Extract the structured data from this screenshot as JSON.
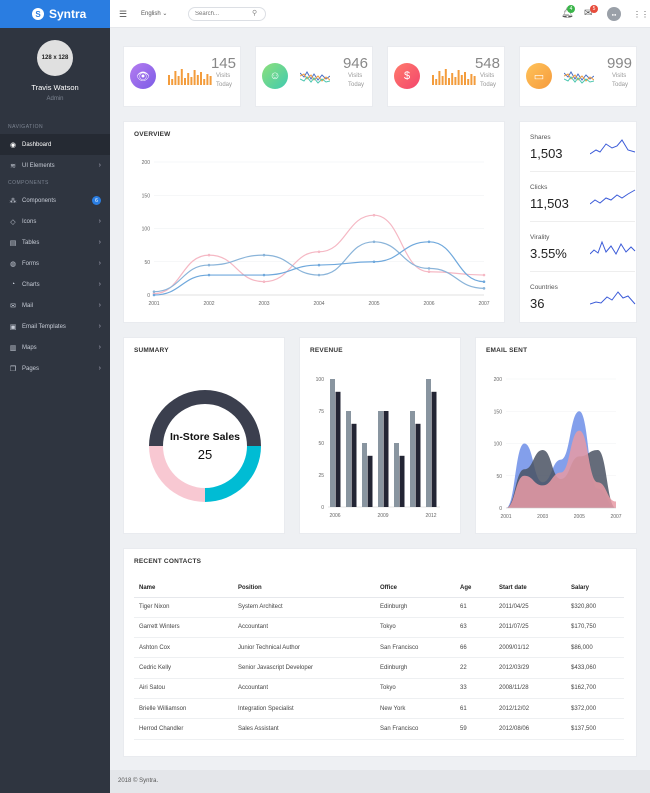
{
  "brand": {
    "name": "Syntra"
  },
  "profile": {
    "avatar_text": "128 x 128",
    "name": "Travis Watson",
    "role": "Admin"
  },
  "nav": {
    "heading1": "NAVIGATION",
    "heading2": "COMPONENTS",
    "items": [
      {
        "label": "Dashboard",
        "icon": "dashboard-icon"
      },
      {
        "label": "UI Elements",
        "icon": "layers-icon"
      },
      {
        "label": "Components",
        "icon": "components-icon",
        "badge": "6"
      },
      {
        "label": "Icons",
        "icon": "diamond-icon"
      },
      {
        "label": "Tables",
        "icon": "table-icon"
      },
      {
        "label": "Forms",
        "icon": "form-icon"
      },
      {
        "label": "Charts",
        "icon": "chart-icon"
      },
      {
        "label": "Mail",
        "icon": "mail-icon"
      },
      {
        "label": "Email Templates",
        "icon": "template-icon"
      },
      {
        "label": "Maps",
        "icon": "map-icon"
      },
      {
        "label": "Pages",
        "icon": "pages-icon"
      }
    ]
  },
  "header": {
    "language": "English",
    "search_placeholder": "Search...",
    "notif_count": "4",
    "mail_count": "5"
  },
  "stats": [
    {
      "value": "145",
      "label": "Visits Today",
      "color": "#9b59d6",
      "icon": "eye-icon"
    },
    {
      "value": "946",
      "label": "Visits Today",
      "color": "#4cd6a0",
      "icon": "user-icon"
    },
    {
      "value": "548",
      "label": "Visits Today",
      "color": "#f3566d",
      "icon": "dollar-icon"
    },
    {
      "value": "999",
      "label": "Visits Today",
      "color": "#f9a93c",
      "icon": "wallet-icon"
    }
  ],
  "overview": {
    "title": "OVERVIEW",
    "chart_data": {
      "type": "line",
      "x": [
        "2001",
        "2002",
        "2003",
        "2004",
        "2005",
        "2006",
        "2007"
      ],
      "ylim": [
        0,
        200
      ],
      "yticks": [
        "0",
        "50",
        "100",
        "150",
        "200"
      ],
      "series": [
        {
          "values": [
            2,
            60,
            20,
            65,
            120,
            35,
            30
          ],
          "color": "#f5b8c4"
        },
        {
          "values": [
            5,
            45,
            60,
            30,
            80,
            40,
            10
          ],
          "color": "#8ab4d9"
        },
        {
          "values": [
            0,
            30,
            30,
            45,
            50,
            80,
            20
          ],
          "color": "#6fa8dc"
        }
      ]
    }
  },
  "metrics": [
    {
      "label": "Shares",
      "value": "1,503"
    },
    {
      "label": "Clicks",
      "value": "11,503"
    },
    {
      "label": "Virality",
      "value": "3.55%"
    },
    {
      "label": "Countries",
      "value": "36"
    }
  ],
  "summary": {
    "title": "SUMMARY",
    "center_label": "In-Store Sales",
    "center_value": "25",
    "chart_data": {
      "type": "pie",
      "slices": [
        {
          "value": 50,
          "color": "#3b3f4e"
        },
        {
          "value": 25,
          "color": "#00bcd4"
        },
        {
          "value": 25,
          "color": "#f8c8d2"
        }
      ]
    }
  },
  "revenue": {
    "title": "REVENUE",
    "chart_data": {
      "type": "bar",
      "xticks": [
        "2006",
        "2009",
        "2012"
      ],
      "ylim": [
        0,
        100
      ],
      "yticks": [
        "0",
        "25",
        "50",
        "75",
        "100"
      ],
      "series": [
        {
          "values": [
            100,
            75,
            50,
            75,
            50,
            75,
            100
          ],
          "color": "#8995a0"
        },
        {
          "values": [
            90,
            65,
            40,
            75,
            40,
            65,
            90
          ],
          "color": "#232534"
        }
      ]
    }
  },
  "email": {
    "title": "EMAIL SENT",
    "chart_data": {
      "type": "area",
      "xticks": [
        "2001",
        "2003",
        "2005",
        "2007"
      ],
      "ylim": [
        0,
        200
      ],
      "yticks": [
        "0",
        "50",
        "100",
        "150",
        "200"
      ],
      "series": [
        {
          "values": [
            0,
            100,
            40,
            75,
            150,
            30,
            0
          ],
          "color": "#6d8ee8"
        },
        {
          "values": [
            0,
            60,
            90,
            45,
            80,
            90,
            0
          ],
          "color": "#4a5263"
        },
        {
          "values": [
            0,
            50,
            35,
            55,
            120,
            40,
            10
          ],
          "color": "#e89aa4"
        }
      ]
    }
  },
  "contacts": {
    "title": "RECENT CONTACTS",
    "columns": [
      "Name",
      "Position",
      "Office",
      "Age",
      "Start date",
      "Salary"
    ],
    "rows": [
      [
        "Tiger Nixon",
        "System Architect",
        "Edinburgh",
        "61",
        "2011/04/25",
        "$320,800"
      ],
      [
        "Garrett Winters",
        "Accountant",
        "Tokyo",
        "63",
        "2011/07/25",
        "$170,750"
      ],
      [
        "Ashton Cox",
        "Junior Technical Author",
        "San Francisco",
        "66",
        "2009/01/12",
        "$86,000"
      ],
      [
        "Cedric Kelly",
        "Senior Javascript Developer",
        "Edinburgh",
        "22",
        "2012/03/29",
        "$433,060"
      ],
      [
        "Airi Satou",
        "Accountant",
        "Tokyo",
        "33",
        "2008/11/28",
        "$162,700"
      ],
      [
        "Brielle Williamson",
        "Integration Specialist",
        "New York",
        "61",
        "2012/12/02",
        "$372,000"
      ],
      [
        "Herrod Chandler",
        "Sales Assistant",
        "San Francisco",
        "59",
        "2012/08/06",
        "$137,500"
      ]
    ]
  },
  "footer": {
    "text": "2018 © Syntra."
  }
}
